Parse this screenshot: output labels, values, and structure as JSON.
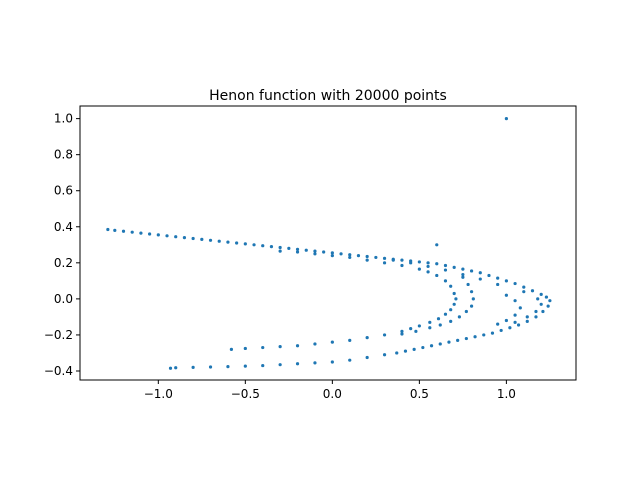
{
  "chart_data": {
    "type": "scatter",
    "title": "Henon function with 20000 points",
    "xlabel": "",
    "ylabel": "",
    "xlim": [
      -1.45,
      1.4
    ],
    "ylim": [
      -0.45,
      1.07
    ],
    "grid": false,
    "x_ticks": [
      -1.0,
      -0.5,
      0.0,
      0.5,
      1.0
    ],
    "x_tick_labels": [
      "−1.0",
      "−0.5",
      "0.0",
      "0.5",
      "1.0"
    ],
    "y_ticks": [
      -0.4,
      -0.2,
      0.0,
      0.2,
      0.4,
      0.6,
      0.8,
      1.0
    ],
    "y_tick_labels": [
      "−0.4",
      "−0.2",
      "0.0",
      "0.2",
      "0.4",
      "0.6",
      "0.8",
      "1.0"
    ],
    "series": [
      {
        "color": "#1f77b4",
        "point_count": 20000,
        "points": [
          [
            1.0,
            1.0
          ],
          [
            0.6,
            0.3
          ],
          [
            -1.29,
            0.385
          ],
          [
            -1.25,
            0.38
          ],
          [
            -1.2,
            0.375
          ],
          [
            -1.15,
            0.37
          ],
          [
            -1.1,
            0.365
          ],
          [
            -1.05,
            0.36
          ],
          [
            -1.0,
            0.355
          ],
          [
            -0.95,
            0.35
          ],
          [
            -0.9,
            0.345
          ],
          [
            -0.85,
            0.34
          ],
          [
            -0.8,
            0.335
          ],
          [
            -0.75,
            0.33
          ],
          [
            -0.7,
            0.325
          ],
          [
            -0.65,
            0.32
          ],
          [
            -0.6,
            0.315
          ],
          [
            -0.55,
            0.31
          ],
          [
            -0.5,
            0.305
          ],
          [
            -0.45,
            0.3
          ],
          [
            -0.4,
            0.295
          ],
          [
            -0.35,
            0.29
          ],
          [
            -0.3,
            0.285
          ],
          [
            -0.25,
            0.28
          ],
          [
            -0.2,
            0.275
          ],
          [
            -0.15,
            0.27
          ],
          [
            -0.1,
            0.265
          ],
          [
            -0.05,
            0.26
          ],
          [
            0.0,
            0.255
          ],
          [
            0.05,
            0.25
          ],
          [
            0.1,
            0.245
          ],
          [
            0.15,
            0.24
          ],
          [
            0.2,
            0.235
          ],
          [
            0.25,
            0.23
          ],
          [
            0.3,
            0.225
          ],
          [
            0.35,
            0.22
          ],
          [
            0.4,
            0.215
          ],
          [
            0.45,
            0.21
          ],
          [
            0.5,
            0.205
          ],
          [
            0.55,
            0.2
          ],
          [
            0.6,
            0.195
          ],
          [
            0.65,
            0.185
          ],
          [
            0.7,
            0.175
          ],
          [
            0.75,
            0.165
          ],
          [
            0.8,
            0.155
          ],
          [
            0.85,
            0.145
          ],
          [
            0.9,
            0.13
          ],
          [
            0.95,
            0.115
          ],
          [
            1.0,
            0.1
          ],
          [
            1.05,
            0.085
          ],
          [
            1.1,
            0.065
          ],
          [
            1.15,
            0.045
          ],
          [
            1.2,
            0.025
          ],
          [
            1.23,
            0.01
          ],
          [
            1.25,
            -0.01
          ],
          [
            1.24,
            -0.04
          ],
          [
            1.21,
            -0.07
          ],
          [
            1.17,
            -0.1
          ],
          [
            1.12,
            -0.125
          ],
          [
            1.07,
            -0.145
          ],
          [
            1.02,
            -0.16
          ],
          [
            0.97,
            -0.175
          ],
          [
            0.92,
            -0.19
          ],
          [
            0.87,
            -0.2
          ],
          [
            0.82,
            -0.21
          ],
          [
            0.77,
            -0.22
          ],
          [
            0.72,
            -0.23
          ],
          [
            0.67,
            -0.24
          ],
          [
            0.62,
            -0.25
          ],
          [
            0.57,
            -0.26
          ],
          [
            0.52,
            -0.27
          ],
          [
            0.47,
            -0.28
          ],
          [
            0.42,
            -0.29
          ],
          [
            0.37,
            -0.3
          ],
          [
            0.3,
            -0.31
          ],
          [
            0.2,
            -0.325
          ],
          [
            0.1,
            -0.34
          ],
          [
            0.0,
            -0.35
          ],
          [
            -0.1,
            -0.355
          ],
          [
            -0.2,
            -0.36
          ],
          [
            -0.3,
            -0.365
          ],
          [
            -0.4,
            -0.37
          ],
          [
            -0.5,
            -0.373
          ],
          [
            -0.6,
            -0.376
          ],
          [
            -0.7,
            -0.378
          ],
          [
            -0.8,
            -0.38
          ],
          [
            -0.9,
            -0.382
          ],
          [
            -0.93,
            -0.385
          ],
          [
            -0.3,
            0.265
          ],
          [
            -0.2,
            0.26
          ],
          [
            -0.1,
            0.25
          ],
          [
            0.0,
            0.24
          ],
          [
            0.1,
            0.23
          ],
          [
            0.2,
            0.215
          ],
          [
            0.3,
            0.2
          ],
          [
            0.4,
            0.185
          ],
          [
            0.5,
            0.165
          ],
          [
            0.55,
            0.15
          ],
          [
            0.6,
            0.13
          ],
          [
            0.65,
            0.1
          ],
          [
            0.68,
            0.07
          ],
          [
            0.7,
            0.03
          ],
          [
            0.71,
            0.0
          ],
          [
            0.7,
            -0.03
          ],
          [
            0.68,
            -0.06
          ],
          [
            0.65,
            -0.085
          ],
          [
            0.61,
            -0.11
          ],
          [
            0.56,
            -0.13
          ],
          [
            0.5,
            -0.15
          ],
          [
            0.45,
            -0.165
          ],
          [
            0.4,
            -0.18
          ],
          [
            0.3,
            -0.2
          ],
          [
            0.2,
            -0.215
          ],
          [
            0.1,
            -0.23
          ],
          [
            0.0,
            -0.24
          ],
          [
            -0.1,
            -0.25
          ],
          [
            -0.2,
            -0.26
          ],
          [
            -0.3,
            -0.265
          ],
          [
            -0.4,
            -0.27
          ],
          [
            -0.5,
            -0.275
          ],
          [
            -0.58,
            -0.28
          ],
          [
            0.75,
            0.12
          ],
          [
            0.78,
            0.08
          ],
          [
            0.8,
            0.04
          ],
          [
            0.81,
            0.0
          ],
          [
            0.8,
            -0.04
          ],
          [
            0.77,
            -0.07
          ],
          [
            0.73,
            -0.1
          ],
          [
            0.68,
            -0.125
          ],
          [
            0.62,
            -0.145
          ],
          [
            0.56,
            -0.16
          ],
          [
            0.48,
            -0.18
          ],
          [
            0.4,
            -0.195
          ],
          [
            1.0,
            0.02
          ],
          [
            1.05,
            -0.01
          ],
          [
            1.08,
            -0.05
          ],
          [
            1.05,
            -0.09
          ],
          [
            1.0,
            -0.12
          ],
          [
            0.95,
            -0.14
          ],
          [
            0.35,
            0.215
          ],
          [
            0.45,
            0.2
          ],
          [
            0.55,
            0.18
          ],
          [
            0.65,
            0.16
          ],
          [
            0.75,
            0.135
          ],
          [
            0.85,
            0.11
          ],
          [
            0.95,
            0.08
          ],
          [
            1.1,
            0.04
          ],
          [
            1.18,
            0.0
          ],
          [
            1.2,
            -0.03
          ],
          [
            1.17,
            -0.07
          ],
          [
            1.12,
            -0.1
          ],
          [
            1.05,
            -0.13
          ]
        ]
      }
    ]
  }
}
